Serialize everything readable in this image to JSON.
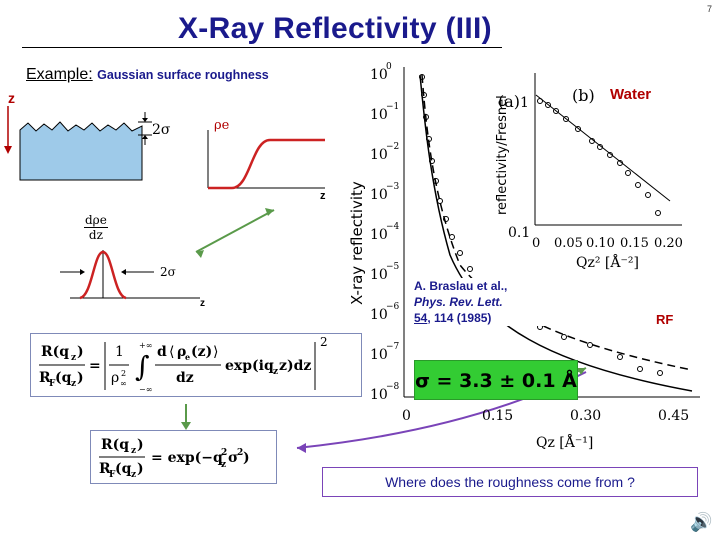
{
  "slide": {
    "title": "X-Ray Reflectivity (III)",
    "page_number": "7",
    "example_label": "Example:",
    "example_subtitle": "Gaussian surface roughness"
  },
  "schematic": {
    "z_label": "z",
    "two_sigma_label": "2σ",
    "rho_label": "ρe",
    "z_axis_label": "z",
    "derivative_num": "dρe",
    "derivative_den": "dz",
    "two_sigma_gauss_label": "2σ",
    "z_gauss_label": "z"
  },
  "equations": {
    "eq1": "R(qz)/RF(qz) = | 1/ρ∞² ∫ d⟨ρe(z)⟩/dz exp(iqz z) dz |²",
    "eq2": "R(qz)/RF(qz) = exp(−qz²σ²)"
  },
  "plot": {
    "sample_label": "Water",
    "panel_a_label": "(a)",
    "panel_b_label": "(b)",
    "ylabel": "X-ray reflectivity",
    "xlabel": "Qz [Å⁻¹]",
    "x_ticks": [
      "0",
      "0.15",
      "0.30",
      "0.45"
    ],
    "y_ticks": [
      "10⁰",
      "10⁻¹",
      "10⁻²",
      "10⁻³",
      "10⁻⁴",
      "10⁻⁵",
      "10⁻⁶",
      "10⁻⁷",
      "10⁻⁸"
    ],
    "rf_label": "RF",
    "inset_ylabel": "reflectivity/Fresnel",
    "inset_xlabel": "Qz² [Å⁻²]",
    "inset_x_ticks": [
      "0",
      "0.05",
      "0.10",
      "0.15",
      "0.20"
    ],
    "inset_y_ticks": [
      "1",
      "0.1"
    ]
  },
  "reference": {
    "authors": "A. Braslau et al.,",
    "journal": "Phys. Rev. Lett.",
    "volume": "54",
    "pages": ", 114 (1985)"
  },
  "result": {
    "text": "σ = 3.3 ± 0.1 Å"
  },
  "question": {
    "text": "Where does the roughness come from ?"
  }
}
